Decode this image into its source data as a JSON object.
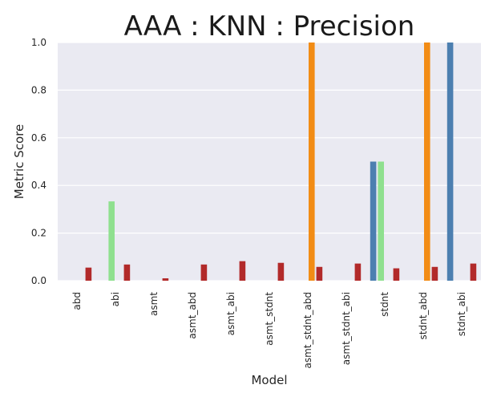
{
  "chart_data": {
    "type": "bar",
    "title": "AAA : KNN : Precision",
    "xlabel": "Model",
    "ylabel": "Metric Score",
    "ylim": [
      0,
      1.0
    ],
    "yticks": [
      "0.0",
      "0.2",
      "0.4",
      "0.6",
      "0.8",
      "1.0"
    ],
    "grid": true,
    "legend": "none",
    "categories": [
      "abd",
      "abi",
      "asmt",
      "asmt_abd",
      "asmt_abi",
      "asmt_stdnt",
      "asmt_stdnt_abd",
      "asmt_stdnt_abi",
      "stdnt",
      "stdnt_abd",
      "stdnt_abi"
    ],
    "series": [
      {
        "color": "#4c7fb0",
        "values": [
          0,
          0,
          0,
          0,
          0,
          0,
          0,
          0,
          0.5,
          0,
          1.0
        ]
      },
      {
        "color": "#8fe08f",
        "values": [
          0,
          0.333,
          0,
          0,
          0,
          0,
          0,
          0,
          0.5,
          0,
          0
        ]
      },
      {
        "color": "#f28c15",
        "values": [
          0,
          0,
          0,
          0,
          0,
          0,
          1.0,
          0,
          0,
          1.0,
          0
        ]
      },
      {
        "color": "#b22a2a",
        "values": [
          0.055,
          0.068,
          0.01,
          0.068,
          0.082,
          0.075,
          0.058,
          0.072,
          0.052,
          0.058,
          0.072
        ]
      }
    ]
  }
}
